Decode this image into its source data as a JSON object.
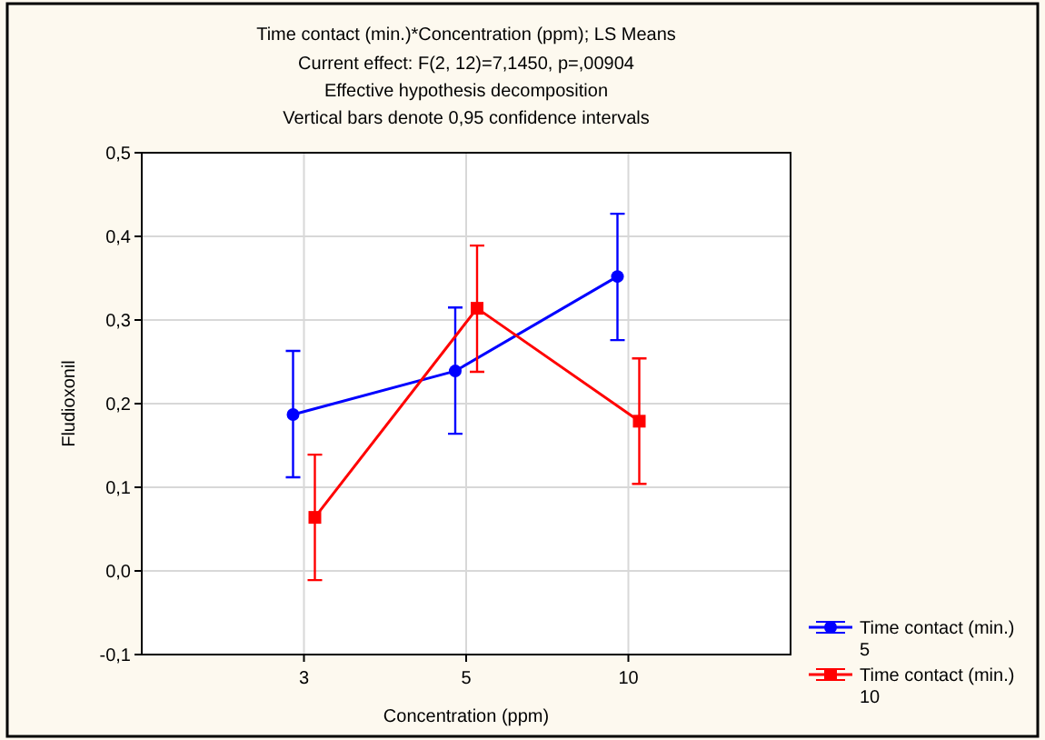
{
  "chart_data": {
    "type": "line",
    "title": "Time contact (min.)*Concentration  (ppm); LS Means",
    "annotations": [
      "Current effect: F(2, 12)=7,1450, p=,00904",
      "Effective hypothesis decomposition",
      "Vertical bars denote 0,95 confidence intervals"
    ],
    "xlabel": "Concentration  (ppm)",
    "ylabel": "Fludioxonil",
    "categories": [
      "3",
      "5",
      "10"
    ],
    "series": [
      {
        "name": "Time contact (min.) 5",
        "color": "#0000ff",
        "marker": "circle",
        "values": [
          0.187,
          0.239,
          0.352
        ],
        "errors": [
          [
            0.112,
            0.263
          ],
          [
            0.164,
            0.315
          ],
          [
            0.276,
            0.427
          ]
        ]
      },
      {
        "name": "Time contact (min.) 10",
        "color": "#ff0000",
        "marker": "square",
        "values": [
          0.064,
          0.314,
          0.179
        ],
        "errors": [
          [
            -0.011,
            0.139
          ],
          [
            0.238,
            0.389
          ],
          [
            0.104,
            0.254
          ]
        ]
      }
    ],
    "ylim": [
      -0.1,
      0.5
    ],
    "yticks": [
      {
        "value": -0.1,
        "label": "-0,1"
      },
      {
        "value": 0,
        "label": "0,0"
      },
      {
        "value": 0.1,
        "label": "0,1"
      },
      {
        "value": 0.2,
        "label": "0,2"
      },
      {
        "value": 0.3,
        "label": "0,3"
      },
      {
        "value": 0.4,
        "label": "0,4"
      },
      {
        "value": 0.5,
        "label": "0,5"
      }
    ],
    "grid": true,
    "legend": "bottom right",
    "line_style": "solid"
  }
}
